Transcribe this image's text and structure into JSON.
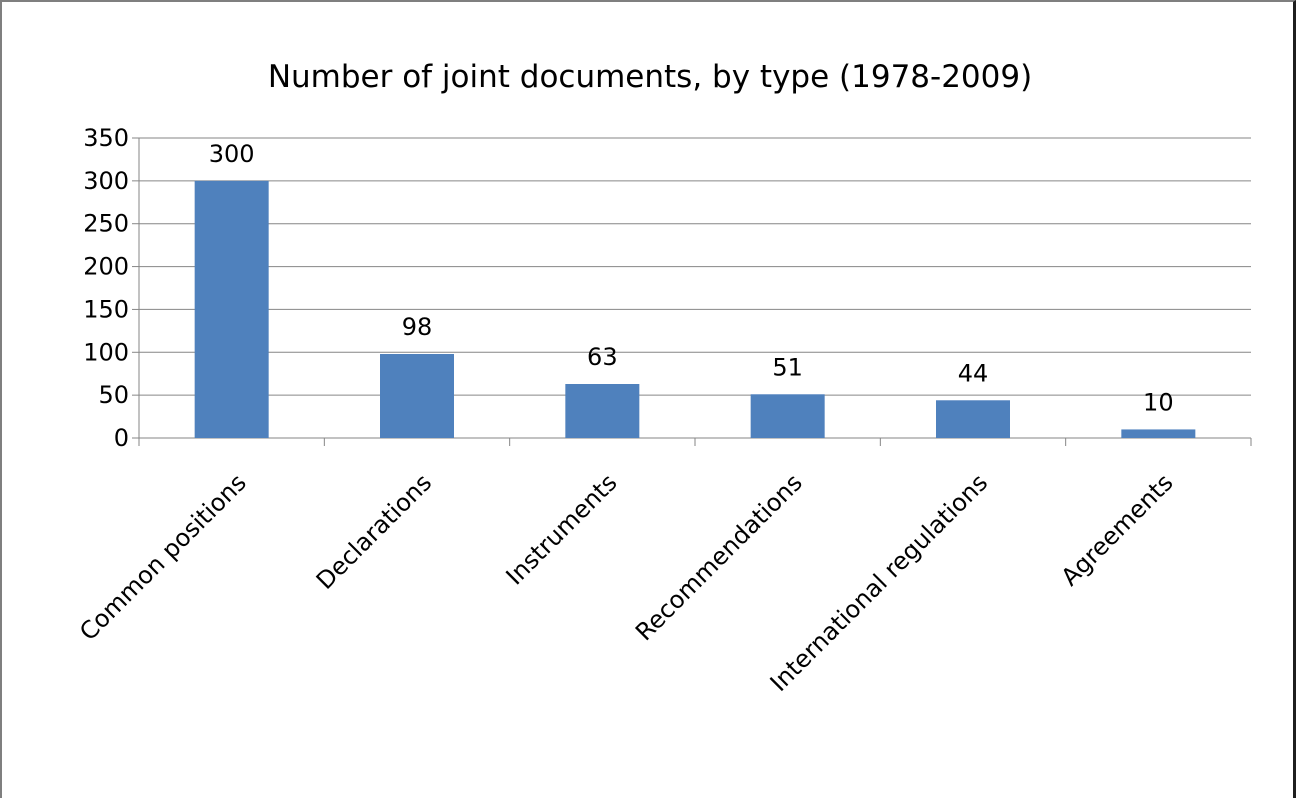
{
  "chart_data": {
    "type": "bar",
    "title": "Number of joint documents, by type (1978-2009)",
    "xlabel": "",
    "ylabel": "",
    "categories": [
      "Common positions",
      "Declarations",
      "Instruments",
      "Recommendations",
      "International regulations",
      "Agreements"
    ],
    "values": [
      300,
      98,
      63,
      51,
      44,
      10
    ],
    "data_labels": [
      "300",
      "98",
      "63",
      "51",
      "44",
      "10"
    ],
    "ylim": [
      0,
      350
    ],
    "yticks": [
      0,
      50,
      100,
      150,
      200,
      250,
      300,
      350
    ],
    "ytick_labels": [
      "0",
      "50",
      "100",
      "150",
      "200",
      "250",
      "300",
      "350"
    ],
    "grid": true,
    "legend": "none",
    "bar_color": "#4f81bd"
  }
}
